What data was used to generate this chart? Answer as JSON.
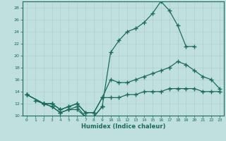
{
  "title": "",
  "xlabel": "Humidex (Indice chaleur)",
  "ylabel": "",
  "bg_color": "#c0e0e0",
  "line_color": "#1a6b5a",
  "grid_color": "#b0d0d0",
  "xlim": [
    -0.5,
    23.5
  ],
  "ylim": [
    10,
    29
  ],
  "xticks": [
    0,
    1,
    2,
    3,
    4,
    5,
    6,
    7,
    8,
    9,
    10,
    11,
    12,
    13,
    14,
    15,
    16,
    17,
    18,
    19,
    20,
    21,
    22,
    23
  ],
  "yticks": [
    10,
    12,
    14,
    16,
    18,
    20,
    22,
    24,
    26,
    28
  ],
  "series": [
    {
      "x": [
        0,
        2,
        3,
        4,
        5,
        6,
        7,
        8,
        9,
        10,
        11,
        12,
        13,
        14,
        15,
        16,
        17,
        18,
        19,
        20
      ],
      "y": [
        13.5,
        12.0,
        11.5,
        10.5,
        11.0,
        11.5,
        9.8,
        9.8,
        11.5,
        20.5,
        22.5,
        24.0,
        24.5,
        25.5,
        27.0,
        29.0,
        27.5,
        25.0,
        21.5,
        21.5
      ]
    },
    {
      "x": [
        0,
        2,
        3,
        4,
        5,
        6,
        7,
        8,
        9,
        10,
        11,
        12,
        13,
        14,
        15,
        16,
        17,
        18,
        19,
        20,
        21,
        22,
        23
      ],
      "y": [
        13.5,
        12.0,
        12.0,
        11.0,
        11.5,
        12.0,
        10.5,
        10.5,
        13.0,
        16.0,
        15.5,
        15.5,
        16.0,
        16.5,
        17.0,
        17.5,
        18.0,
        19.0,
        18.5,
        17.5,
        16.5,
        16.0,
        14.5
      ]
    },
    {
      "x": [
        0,
        2,
        3,
        4,
        5,
        6,
        7,
        8,
        9,
        10,
        11,
        12,
        13,
        14,
        15,
        16,
        17,
        18,
        19,
        20,
        21,
        22,
        23
      ],
      "y": [
        13.5,
        12.0,
        12.0,
        11.0,
        11.5,
        12.0,
        10.5,
        10.5,
        13.0,
        13.0,
        13.0,
        13.5,
        13.5,
        14.0,
        14.0,
        14.0,
        14.5,
        14.5,
        14.5,
        14.5,
        14.0,
        14.0,
        14.0
      ]
    },
    {
      "x": [
        1,
        2,
        3,
        4,
        5,
        6,
        7,
        8,
        9
      ],
      "y": [
        12.5,
        12.0,
        11.5,
        10.5,
        11.0,
        11.0,
        9.8,
        9.8,
        11.5
      ]
    }
  ]
}
